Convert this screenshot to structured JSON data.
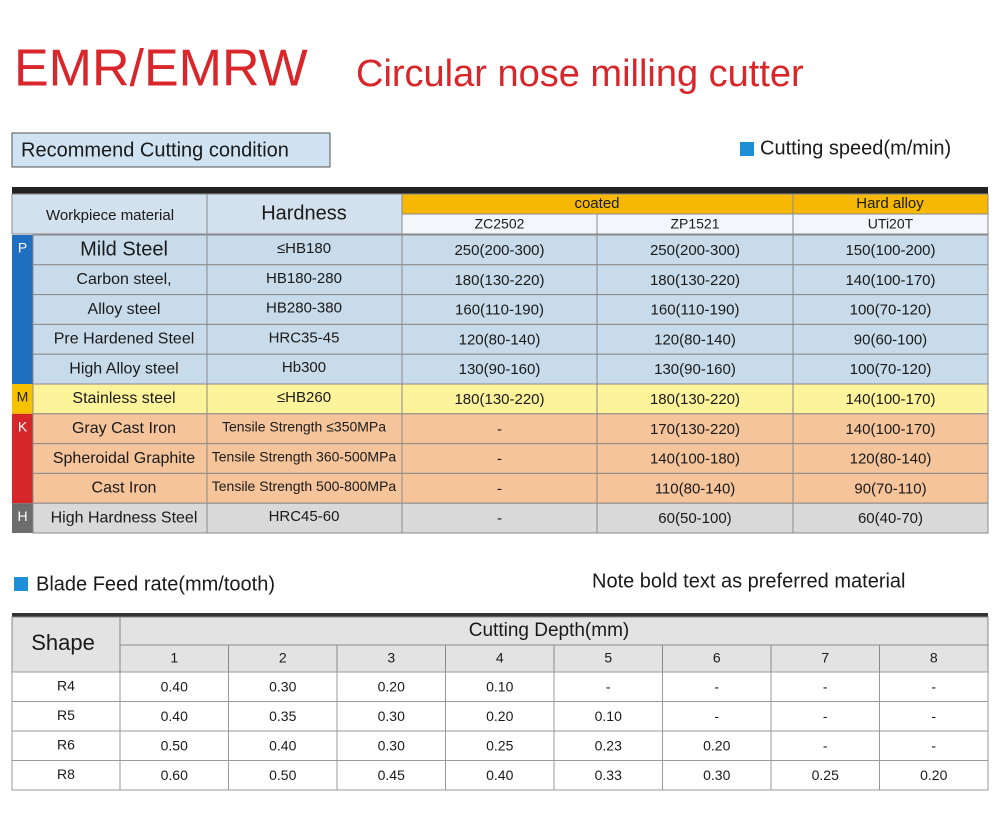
{
  "header": {
    "code": "EMR/EMRW",
    "title": "Circular nose milling cutter"
  },
  "speed_section": {
    "label": "Recommend Cutting condition",
    "legend": "Cutting speed(m/min)",
    "table": {
      "material_header": "Workpiece material",
      "hardness_header": "Hardness",
      "coated_header": "coated",
      "hard_alloy_header": "Hard alloy",
      "grades": [
        "ZC2502",
        "ZP1521",
        "UTi20T"
      ],
      "groups": [
        {
          "code": "P",
          "rows": [
            {
              "material": "Mild Steel",
              "hardness": "≤HB180",
              "speeds": [
                "250(200-300)",
                "250(200-300)",
                "150(100-200)"
              ]
            },
            {
              "material": "Carbon steel,",
              "hardness": "HB180-280",
              "speeds": [
                "180(130-220)",
                "180(130-220)",
                "140(100-170)"
              ]
            },
            {
              "material": "Alloy steel",
              "hardness": "HB280-380",
              "speeds": [
                "160(110-190)",
                "160(110-190)",
                "100(70-120)"
              ]
            },
            {
              "material": "Pre Hardened Steel",
              "hardness": "HRC35-45",
              "speeds": [
                "120(80-140)",
                "120(80-140)",
                "90(60-100)"
              ]
            },
            {
              "material": "High Alloy steel",
              "hardness": "Hb300",
              "speeds": [
                "130(90-160)",
                "130(90-160)",
                "100(70-120)"
              ]
            }
          ]
        },
        {
          "code": "M",
          "rows": [
            {
              "material": "Stainless steel",
              "hardness": "≤HB260",
              "speeds": [
                "180(130-220)",
                "180(130-220)",
                "140(100-170)"
              ]
            }
          ]
        },
        {
          "code": "K",
          "rows": [
            {
              "material": "Gray Cast Iron",
              "hardness": "Tensile Strength ≤350MPa",
              "speeds": [
                "-",
                "170(130-220)",
                "140(100-170)"
              ]
            },
            {
              "material": "Spheroidal Graphite",
              "hardness": "Tensile Strength 360-500MPa",
              "speeds": [
                "-",
                "140(100-180)",
                "120(80-140)"
              ]
            },
            {
              "material": "Cast Iron",
              "hardness": "Tensile Strength 500-800MPa",
              "speeds": [
                "-",
                "110(80-140)",
                "90(70-110)"
              ]
            }
          ]
        },
        {
          "code": "H",
          "rows": [
            {
              "material": "High Hardness Steel",
              "hardness": "HRC45-60",
              "speeds": [
                "-",
                "60(50-100)",
                "60(40-70)"
              ]
            }
          ]
        }
      ]
    }
  },
  "feed_section": {
    "legend": "Blade Feed rate(mm/tooth)",
    "note": "Note bold text as preferred material",
    "table": {
      "shape_header": "Shape",
      "depth_header": "Cutting Depth(mm)",
      "depths": [
        1,
        2,
        3,
        4,
        5,
        6,
        7,
        8
      ],
      "rows": [
        {
          "shape": "R4",
          "values": [
            "0.40",
            "0.30",
            "0.20",
            "0.10",
            "-",
            "-",
            "-",
            "-"
          ]
        },
        {
          "shape": "R5",
          "values": [
            "0.40",
            "0.35",
            "0.30",
            "0.20",
            "0.10",
            "-",
            "-",
            "-"
          ]
        },
        {
          "shape": "R6",
          "values": [
            "0.50",
            "0.40",
            "0.30",
            "0.25",
            "0.23",
            "0.20",
            "-",
            "-"
          ]
        },
        {
          "shape": "R8",
          "values": [
            "0.60",
            "0.50",
            "0.45",
            "0.40",
            "0.33",
            "0.30",
            "0.25",
            "0.20"
          ]
        }
      ]
    }
  }
}
